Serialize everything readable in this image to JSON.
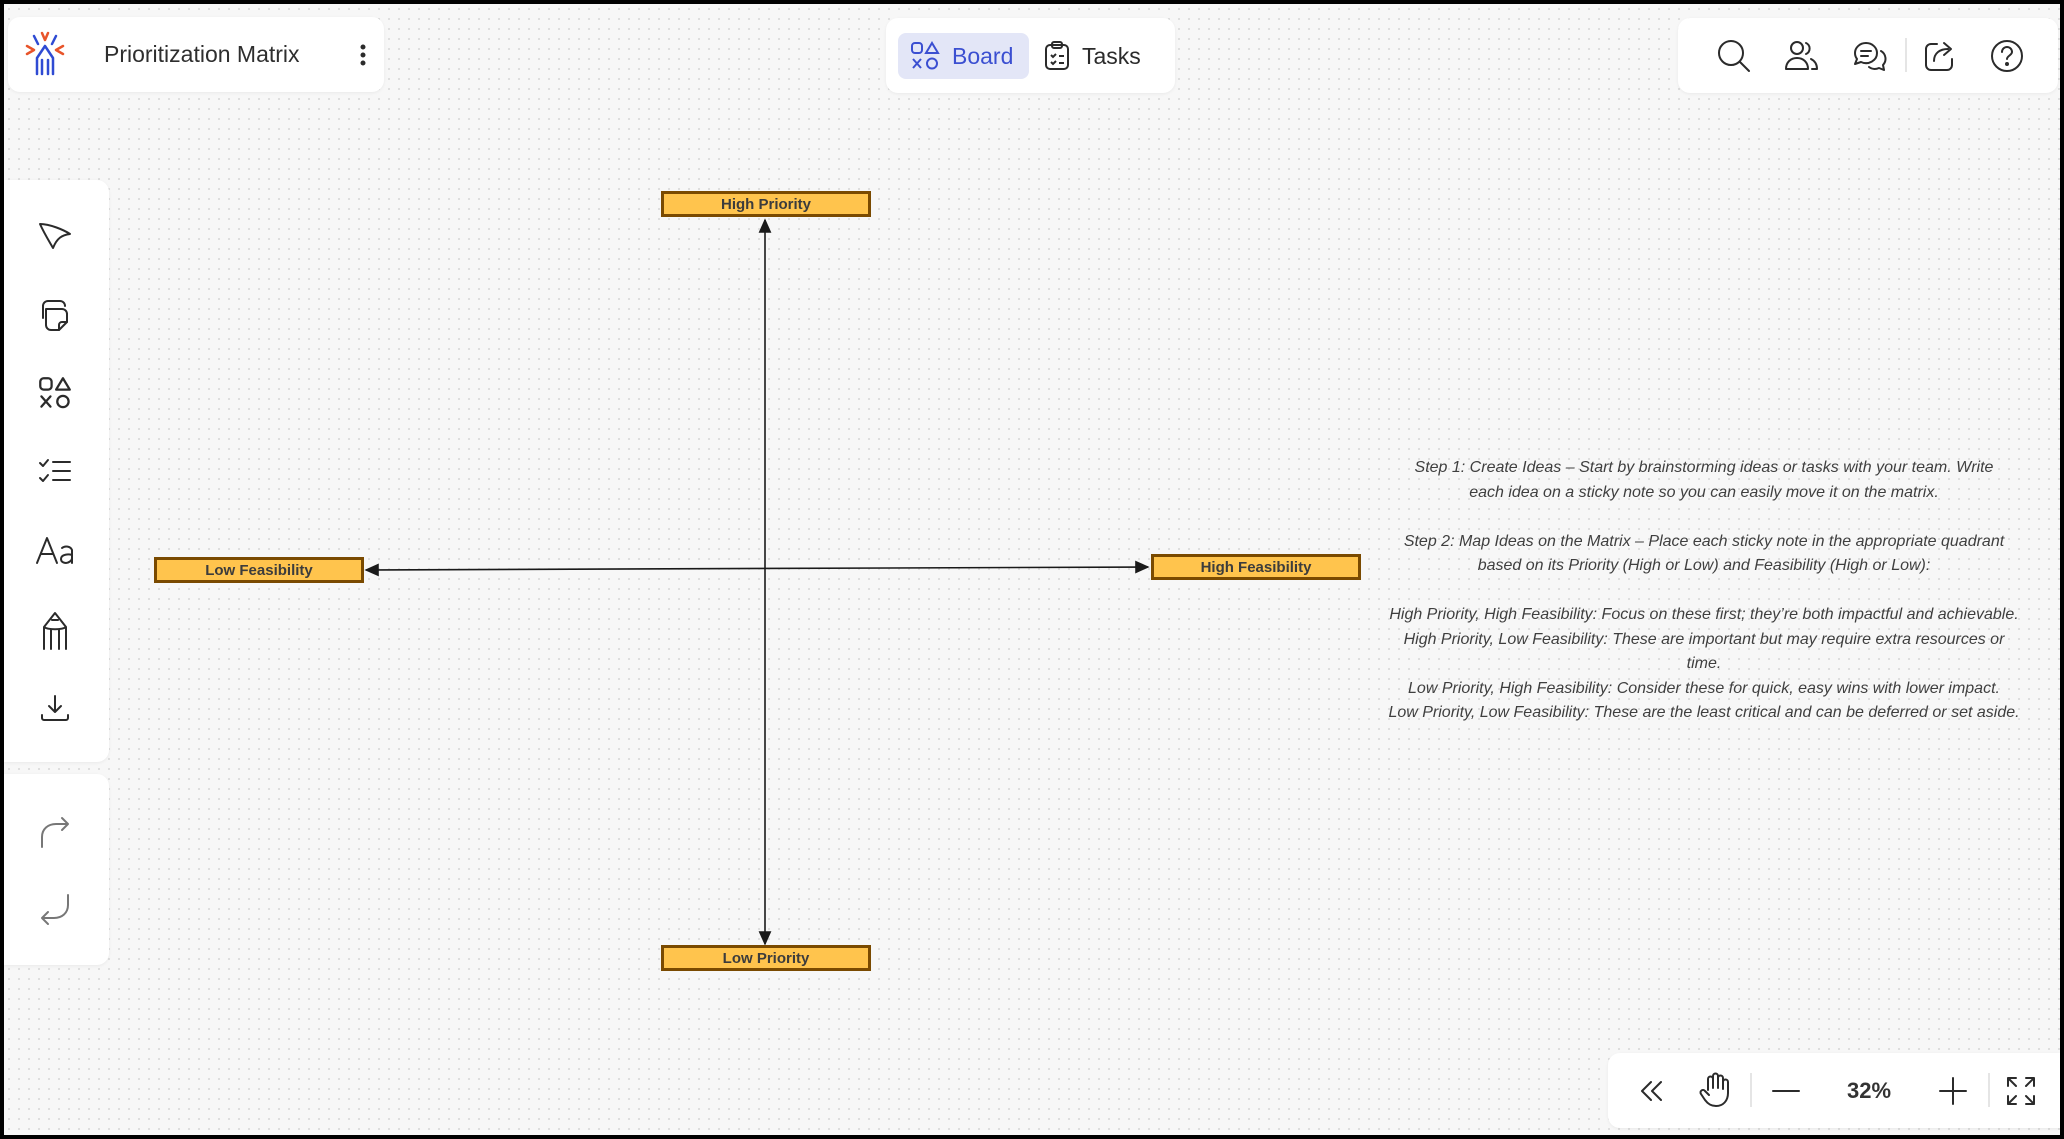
{
  "header": {
    "title": "Prioritization Matrix",
    "menu_icon": "kebab-menu-icon"
  },
  "tabs": [
    {
      "label": "Board",
      "icon": "shapes-icon",
      "active": true
    },
    {
      "label": "Tasks",
      "icon": "clipboard-icon",
      "active": false
    }
  ],
  "top_right_icons": [
    "search-icon",
    "users-icon",
    "comments-icon",
    "share-icon",
    "help-icon"
  ],
  "left_toolbar": [
    "select-icon",
    "sticky-note-icon",
    "shapes-icon",
    "checklist-icon",
    "text-icon",
    "pen-icon",
    "download-icon"
  ],
  "history": [
    "redo-icon",
    "undo-icon"
  ],
  "zoom": {
    "value": "32%"
  },
  "matrix": {
    "top": "High Priority",
    "bottom": "Low Priority",
    "left": "Low Feasibility",
    "right": "High Feasibility",
    "label_fill": "#ffc44d",
    "label_border": "#7a4a00"
  },
  "instructions": {
    "step1": "Step 1: Create Ideas – Start by brainstorming ideas or tasks with your team. Write each idea on a sticky note so you can easily move it on the matrix.",
    "step2": "Step 2: Map Ideas on the Matrix – Place each sticky note in the appropriate quadrant based on its Priority (High or Low) and Feasibility (High or Low):",
    "q1": "High Priority, High Feasibility: Focus on these first; they’re both impactful and achievable.",
    "q2": "High Priority, Low Feasibility: These are important but may require extra resources or time.",
    "q3": "Low Priority, High Feasibility: Consider these for quick, easy wins with lower impact.",
    "q4": "Low Priority, Low Feasibility: These are the least critical and can be deferred or set aside."
  },
  "colors": {
    "accent": "#3b4fd1",
    "active_tab_bg": "#e3e6f7"
  }
}
